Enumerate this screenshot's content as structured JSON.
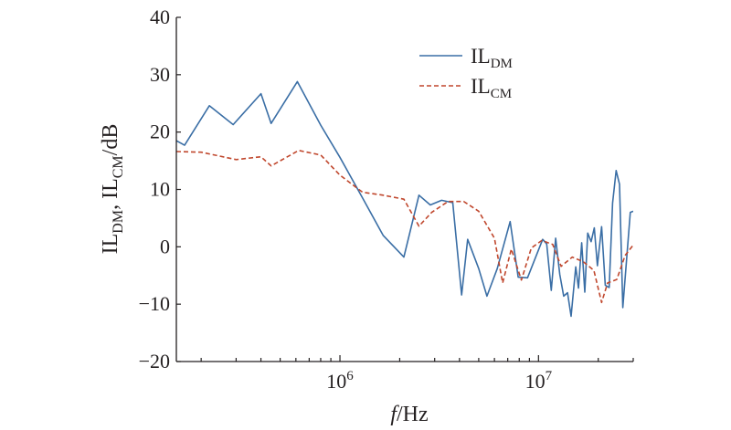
{
  "chart_data": {
    "type": "line",
    "title": "",
    "xlabel": {
      "italic": "f",
      "rest": "/Hz"
    },
    "ylabel": {
      "p1": "IL",
      "s1": "DM",
      "p2": ", IL",
      "s2": "CM",
      "p3": "/dB"
    },
    "x_scale": "log",
    "xlim": [
      150000,
      30000000
    ],
    "ylim": [
      -20,
      40
    ],
    "x_ticks": [
      {
        "value": 1000000,
        "base": "10",
        "exp": "6"
      },
      {
        "value": 10000000,
        "base": "10",
        "exp": "7"
      }
    ],
    "y_ticks": [
      -20,
      -10,
      0,
      10,
      20,
      30,
      40
    ],
    "y_tick_labels": [
      "−20",
      "−10",
      "0",
      "10",
      "20",
      "30",
      "40"
    ],
    "grid": false,
    "legend_position": "top-right",
    "series": [
      {
        "name": {
          "main": "IL",
          "sub": "DM"
        },
        "color": "#3a6ea5",
        "style": "solid",
        "x": [
          150000,
          165000,
          220000,
          290000,
          400000,
          450000,
          610000,
          800000,
          1000000,
          1300000,
          1650000,
          2100000,
          2500000,
          2850000,
          3250000,
          3700000,
          4100000,
          4400000,
          5000000,
          5500000,
          6200000,
          7200000,
          7900000,
          8800000,
          10500000,
          11000000,
          11600000,
          12200000,
          12800000,
          13400000,
          14000000,
          14600000,
          15400000,
          15900000,
          16500000,
          17100000,
          17700000,
          18400000,
          19100000,
          19800000,
          20800000,
          21700000,
          22700000,
          23600000,
          24600000,
          25600000,
          26600000,
          27800000,
          29000000,
          30000000
        ],
        "y": [
          18.5,
          17.7,
          24.6,
          21.3,
          26.7,
          21.5,
          28.8,
          21.2,
          15.6,
          8.5,
          2.0,
          -1.8,
          9.0,
          7.3,
          8.1,
          7.7,
          -8.4,
          1.3,
          -3.8,
          -8.6,
          -3.8,
          4.4,
          -5.3,
          -5.4,
          1.3,
          0.5,
          -7.6,
          1.5,
          -4.8,
          -8.6,
          -8.0,
          -12.1,
          -3.5,
          -7.2,
          0.7,
          -7.9,
          2.4,
          0.9,
          3.3,
          -3.3,
          3.5,
          -6.7,
          -7.1,
          7.6,
          13.3,
          10.9,
          -10.6,
          -2.1,
          6.0,
          6.2
        ]
      },
      {
        "name": {
          "main": "IL",
          "sub": "CM"
        },
        "color": "#c0472d",
        "style": "dashed",
        "x": [
          150000,
          200000,
          300000,
          400000,
          450000,
          620000,
          800000,
          1000000,
          1300000,
          1650000,
          2100000,
          2500000,
          2900000,
          3500000,
          4200000,
          5000000,
          6000000,
          6600000,
          7300000,
          8200000,
          9200000,
          10400000,
          11800000,
          13000000,
          14800000,
          16800000,
          19000000,
          20800000,
          22300000,
          24800000,
          27300000,
          30000000
        ],
        "y": [
          16.6,
          16.5,
          15.2,
          15.7,
          14.1,
          16.8,
          16.0,
          12.5,
          9.5,
          9.0,
          8.3,
          3.6,
          6.0,
          7.9,
          7.9,
          6.2,
          1.5,
          -6.3,
          -0.4,
          -5.8,
          -0.2,
          1.1,
          0.4,
          -3.4,
          -1.8,
          -2.6,
          -4.1,
          -9.7,
          -6.3,
          -5.7,
          -1.5,
          0.3
        ]
      }
    ]
  }
}
